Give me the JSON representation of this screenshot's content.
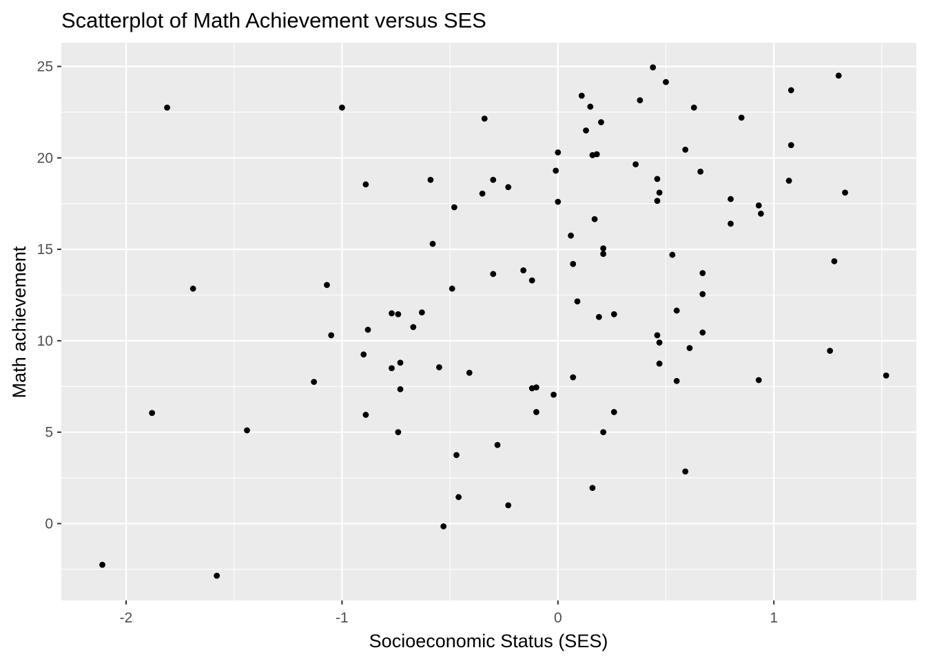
{
  "chart_data": {
    "type": "scatter",
    "title": "Scatterplot of Math Achievement versus SES",
    "xlabel": "Socioeconomic Status (SES)",
    "ylabel": "Math achievement",
    "xlim": [
      -2.3,
      1.66
    ],
    "ylim": [
      -4.2,
      26.3
    ],
    "x_ticks": [
      -2,
      -1,
      0,
      1
    ],
    "x_tick_labels": [
      "-2",
      "-1",
      "0",
      "1"
    ],
    "y_ticks": [
      0,
      5,
      10,
      15,
      20,
      25
    ],
    "y_tick_labels": [
      "0",
      "5",
      "10",
      "15",
      "20",
      "25"
    ],
    "grid": true,
    "colors": {
      "panel": "#EBEBEB",
      "grid": "#FFFFFF",
      "point": "#000000"
    },
    "points": [
      {
        "x": -2.11,
        "y": -2.25
      },
      {
        "x": -1.58,
        "y": -2.85
      },
      {
        "x": -1.88,
        "y": 6.05
      },
      {
        "x": -1.81,
        "y": 22.75
      },
      {
        "x": -1.69,
        "y": 12.85
      },
      {
        "x": -1.44,
        "y": 5.1
      },
      {
        "x": -1.13,
        "y": 7.75
      },
      {
        "x": -1.07,
        "y": 13.05
      },
      {
        "x": -1.05,
        "y": 10.3
      },
      {
        "x": -1.0,
        "y": 22.75
      },
      {
        "x": -0.9,
        "y": 9.25
      },
      {
        "x": -0.89,
        "y": 5.95
      },
      {
        "x": -0.89,
        "y": 18.55
      },
      {
        "x": -0.88,
        "y": 10.6
      },
      {
        "x": -0.77,
        "y": 11.5
      },
      {
        "x": -0.77,
        "y": 8.5
      },
      {
        "x": -0.74,
        "y": 11.45
      },
      {
        "x": -0.74,
        "y": 5.0
      },
      {
        "x": -0.73,
        "y": 8.8
      },
      {
        "x": -0.73,
        "y": 7.35
      },
      {
        "x": -0.67,
        "y": 10.75
      },
      {
        "x": -0.63,
        "y": 11.55
      },
      {
        "x": -0.59,
        "y": 18.8
      },
      {
        "x": -0.58,
        "y": 15.3
      },
      {
        "x": -0.55,
        "y": 8.55
      },
      {
        "x": -0.53,
        "y": -0.15
      },
      {
        "x": -0.49,
        "y": 12.85
      },
      {
        "x": -0.48,
        "y": 17.3
      },
      {
        "x": -0.47,
        "y": 3.75
      },
      {
        "x": -0.46,
        "y": 1.45
      },
      {
        "x": -0.41,
        "y": 8.25
      },
      {
        "x": -0.35,
        "y": 18.05
      },
      {
        "x": -0.34,
        "y": 22.15
      },
      {
        "x": -0.3,
        "y": 18.8
      },
      {
        "x": -0.3,
        "y": 13.65
      },
      {
        "x": -0.28,
        "y": 4.3
      },
      {
        "x": -0.23,
        "y": 18.4
      },
      {
        "x": -0.23,
        "y": 1.0
      },
      {
        "x": -0.16,
        "y": 13.85
      },
      {
        "x": -0.12,
        "y": 13.3
      },
      {
        "x": -0.12,
        "y": 7.4
      },
      {
        "x": -0.1,
        "y": 7.45
      },
      {
        "x": -0.1,
        "y": 6.1
      },
      {
        "x": -0.02,
        "y": 7.05
      },
      {
        "x": -0.01,
        "y": 19.3
      },
      {
        "x": 0.0,
        "y": 20.3
      },
      {
        "x": 0.0,
        "y": 17.6
      },
      {
        "x": 0.06,
        "y": 15.75
      },
      {
        "x": 0.07,
        "y": 14.2
      },
      {
        "x": 0.07,
        "y": 8.0
      },
      {
        "x": 0.09,
        "y": 12.15
      },
      {
        "x": 0.11,
        "y": 23.4
      },
      {
        "x": 0.13,
        "y": 21.5
      },
      {
        "x": 0.15,
        "y": 22.8
      },
      {
        "x": 0.16,
        "y": 20.15
      },
      {
        "x": 0.16,
        "y": 1.95
      },
      {
        "x": 0.17,
        "y": 16.65
      },
      {
        "x": 0.18,
        "y": 20.2
      },
      {
        "x": 0.19,
        "y": 11.3
      },
      {
        "x": 0.2,
        "y": 21.95
      },
      {
        "x": 0.21,
        "y": 15.05
      },
      {
        "x": 0.21,
        "y": 14.75
      },
      {
        "x": 0.21,
        "y": 5.0
      },
      {
        "x": 0.26,
        "y": 11.45
      },
      {
        "x": 0.26,
        "y": 6.1
      },
      {
        "x": 0.36,
        "y": 19.65
      },
      {
        "x": 0.38,
        "y": 23.15
      },
      {
        "x": 0.44,
        "y": 24.95
      },
      {
        "x": 0.46,
        "y": 18.85
      },
      {
        "x": 0.46,
        "y": 17.65
      },
      {
        "x": 0.46,
        "y": 10.3
      },
      {
        "x": 0.47,
        "y": 18.1
      },
      {
        "x": 0.47,
        "y": 9.9
      },
      {
        "x": 0.47,
        "y": 8.75
      },
      {
        "x": 0.5,
        "y": 24.15
      },
      {
        "x": 0.53,
        "y": 14.7
      },
      {
        "x": 0.55,
        "y": 11.65
      },
      {
        "x": 0.55,
        "y": 7.8
      },
      {
        "x": 0.59,
        "y": 20.45
      },
      {
        "x": 0.59,
        "y": 2.85
      },
      {
        "x": 0.61,
        "y": 9.6
      },
      {
        "x": 0.63,
        "y": 22.75
      },
      {
        "x": 0.66,
        "y": 19.25
      },
      {
        "x": 0.67,
        "y": 13.7
      },
      {
        "x": 0.67,
        "y": 12.55
      },
      {
        "x": 0.67,
        "y": 10.45
      },
      {
        "x": 0.8,
        "y": 17.75
      },
      {
        "x": 0.8,
        "y": 16.4
      },
      {
        "x": 0.85,
        "y": 22.2
      },
      {
        "x": 0.93,
        "y": 17.4
      },
      {
        "x": 0.93,
        "y": 7.85
      },
      {
        "x": 0.94,
        "y": 16.95
      },
      {
        "x": 1.07,
        "y": 18.75
      },
      {
        "x": 1.08,
        "y": 23.7
      },
      {
        "x": 1.08,
        "y": 20.7
      },
      {
        "x": 1.26,
        "y": 9.45
      },
      {
        "x": 1.28,
        "y": 14.35
      },
      {
        "x": 1.3,
        "y": 24.5
      },
      {
        "x": 1.33,
        "y": 18.1
      },
      {
        "x": 1.52,
        "y": 8.1
      }
    ]
  }
}
